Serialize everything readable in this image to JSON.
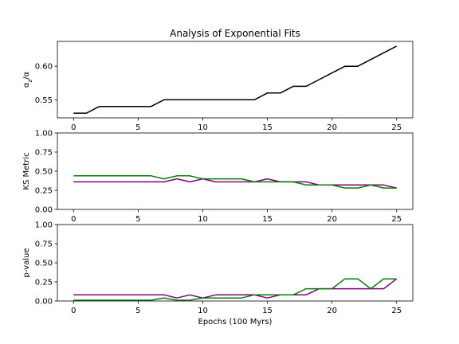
{
  "chart_data": {
    "title": "Analysis of Exponential Fits",
    "xlabel": "Epochs (100 Myrs)",
    "x": [
      0,
      1,
      2,
      3,
      4,
      5,
      6,
      7,
      8,
      9,
      10,
      11,
      12,
      13,
      14,
      15,
      16,
      17,
      18,
      19,
      20,
      21,
      22,
      23,
      24,
      25
    ],
    "xlim": [
      -1.25,
      26.25
    ],
    "xticks": [
      0,
      5,
      10,
      15,
      20,
      25
    ],
    "panels": [
      {
        "type": "line",
        "ylabel": "α_z/α",
        "ylim": [
          0.523,
          0.637
        ],
        "yticks": [
          0.55,
          0.6
        ],
        "ytick_labels": [
          "0.55",
          "0.60"
        ],
        "series": [
          {
            "color": "#000000",
            "values": [
              0.53,
              0.53,
              0.54,
              0.54,
              0.54,
              0.54,
              0.54,
              0.55,
              0.55,
              0.55,
              0.55,
              0.55,
              0.55,
              0.55,
              0.55,
              0.56,
              0.56,
              0.57,
              0.57,
              0.58,
              0.59,
              0.6,
              0.6,
              0.61,
              0.62,
              0.63
            ]
          }
        ]
      },
      {
        "type": "line",
        "ylabel": "KS Metric",
        "ylim": [
          0.0,
          1.0
        ],
        "yticks": [
          0.0,
          0.25,
          0.5,
          0.75,
          1.0
        ],
        "ytick_labels": [
          "0.00",
          "0.25",
          "0.50",
          "0.75",
          "1.00"
        ],
        "series": [
          {
            "color": "#800080",
            "values": [
              0.36,
              0.36,
              0.36,
              0.36,
              0.36,
              0.36,
              0.36,
              0.36,
              0.4,
              0.36,
              0.4,
              0.36,
              0.36,
              0.36,
              0.36,
              0.4,
              0.36,
              0.36,
              0.36,
              0.32,
              0.32,
              0.32,
              0.32,
              0.32,
              0.32,
              0.28
            ]
          },
          {
            "color": "#008000",
            "values": [
              0.44,
              0.44,
              0.44,
              0.44,
              0.44,
              0.44,
              0.44,
              0.4,
              0.44,
              0.44,
              0.4,
              0.4,
              0.4,
              0.4,
              0.36,
              0.36,
              0.36,
              0.36,
              0.32,
              0.32,
              0.32,
              0.28,
              0.28,
              0.32,
              0.28,
              0.28
            ]
          }
        ]
      },
      {
        "type": "line",
        "ylabel": "p-value",
        "ylim": [
          0.0,
          1.0
        ],
        "yticks": [
          0.0,
          0.25,
          0.5,
          0.75,
          1.0
        ],
        "ytick_labels": [
          "0.00",
          "0.25",
          "0.50",
          "0.75",
          "1.00"
        ],
        "series": [
          {
            "color": "#800080",
            "values": [
              0.08,
              0.08,
              0.08,
              0.08,
              0.08,
              0.08,
              0.08,
              0.08,
              0.04,
              0.08,
              0.04,
              0.08,
              0.08,
              0.08,
              0.08,
              0.04,
              0.08,
              0.08,
              0.08,
              0.16,
              0.16,
              0.16,
              0.16,
              0.16,
              0.16,
              0.29
            ]
          },
          {
            "color": "#008000",
            "values": [
              0.01,
              0.01,
              0.01,
              0.01,
              0.01,
              0.01,
              0.01,
              0.04,
              0.01,
              0.01,
              0.04,
              0.04,
              0.04,
              0.04,
              0.08,
              0.08,
              0.08,
              0.08,
              0.16,
              0.16,
              0.16,
              0.29,
              0.29,
              0.16,
              0.29,
              0.29
            ]
          }
        ]
      }
    ]
  }
}
